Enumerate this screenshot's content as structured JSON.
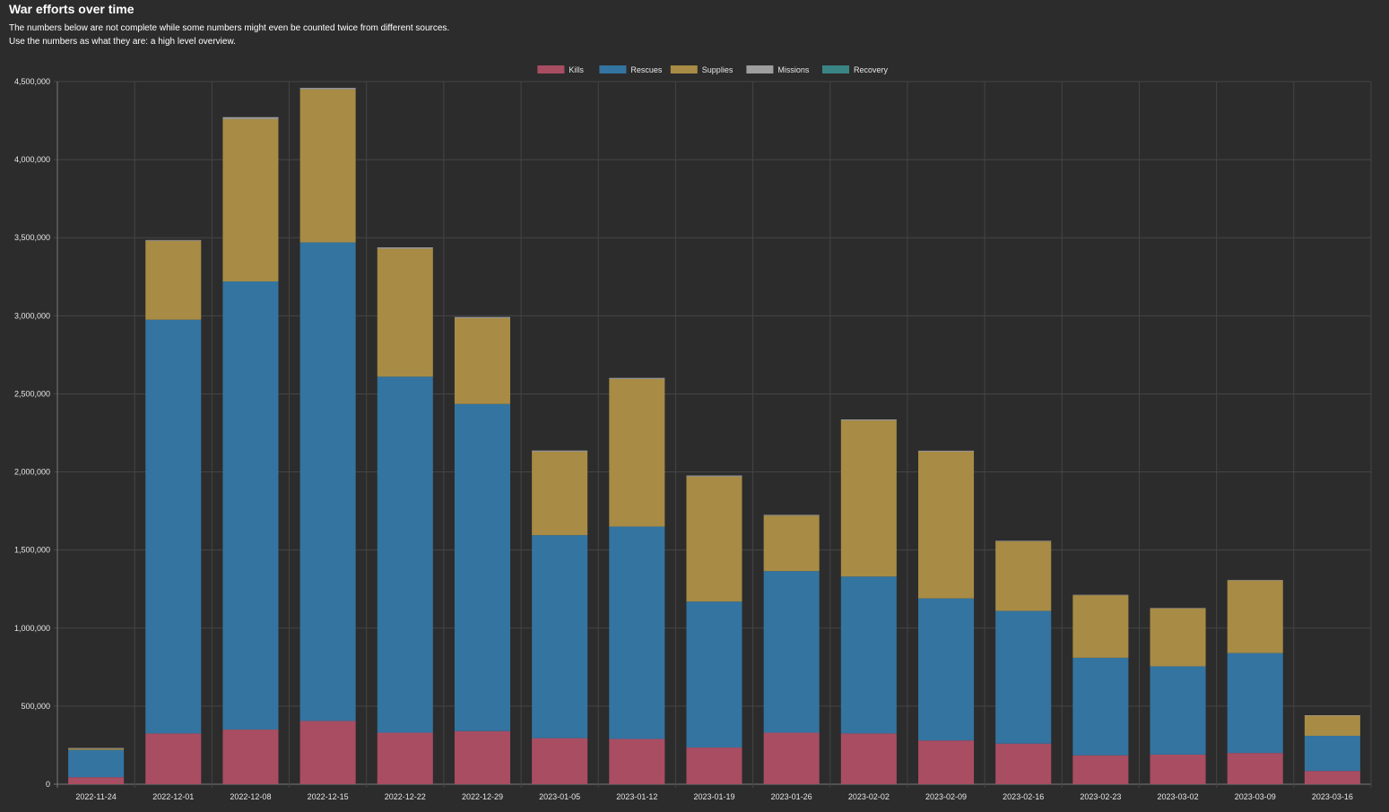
{
  "header": {
    "title": "War efforts over time",
    "note_line1": "The numbers below are not complete while some numbers might even be counted twice from different sources.",
    "note_line2": "Use the numbers as what they are: a high level overview."
  },
  "colors": {
    "background": "#2c2c2c",
    "grid": "#454545",
    "axis_text": "#e6e6e6"
  },
  "chart_data": {
    "type": "bar",
    "stacked": true,
    "title": "War efforts over time",
    "xlabel": "",
    "ylabel": "",
    "ylim": [
      0,
      4500000
    ],
    "yticks": [
      0,
      500000,
      1000000,
      1500000,
      2000000,
      2500000,
      3000000,
      3500000,
      4000000,
      4500000
    ],
    "ytick_labels": [
      "0",
      "500,000",
      "1,000,000",
      "1,500,000",
      "2,000,000",
      "2,500,000",
      "3,000,000",
      "3,500,000",
      "4,000,000",
      "4,500,000"
    ],
    "grid": true,
    "legend_position": "top-center",
    "categories": [
      "2022-11-24",
      "2022-12-01",
      "2022-12-08",
      "2022-12-15",
      "2022-12-22",
      "2022-12-29",
      "2023-01-05",
      "2023-01-12",
      "2023-01-19",
      "2023-01-26",
      "2023-02-02",
      "2023-02-09",
      "2023-02-16",
      "2023-02-23",
      "2023-03-02",
      "2023-03-09",
      "2023-03-16"
    ],
    "series": [
      {
        "name": "Kills",
        "color": "#a94d62",
        "values": [
          45000,
          325000,
          350000,
          405000,
          330000,
          340000,
          295000,
          290000,
          235000,
          330000,
          325000,
          280000,
          260000,
          185000,
          190000,
          200000,
          85000
        ]
      },
      {
        "name": "Rescues",
        "color": "#3474a0",
        "values": [
          175000,
          2650000,
          2870000,
          3065000,
          2280000,
          2095000,
          1300000,
          1360000,
          935000,
          1035000,
          1005000,
          910000,
          850000,
          625000,
          565000,
          640000,
          225000
        ]
      },
      {
        "name": "Supplies",
        "color": "#a88b44",
        "values": [
          8000,
          505000,
          1040000,
          980000,
          820000,
          550000,
          535000,
          945000,
          800000,
          355000,
          1000000,
          940000,
          445000,
          400000,
          370000,
          465000,
          130000
        ]
      },
      {
        "name": "Missions",
        "color": "#9e9e9e",
        "values": [
          4000,
          5000,
          12000,
          9000,
          8000,
          7000,
          7000,
          7000,
          7000,
          5000,
          6000,
          6000,
          4000,
          3000,
          3000,
          3000,
          2000
        ]
      },
      {
        "name": "Recovery",
        "color": "#3b8486",
        "values": [
          0,
          0,
          0,
          0,
          0,
          0,
          0,
          0,
          0,
          0,
          0,
          0,
          0,
          0,
          0,
          0,
          0
        ]
      }
    ]
  }
}
